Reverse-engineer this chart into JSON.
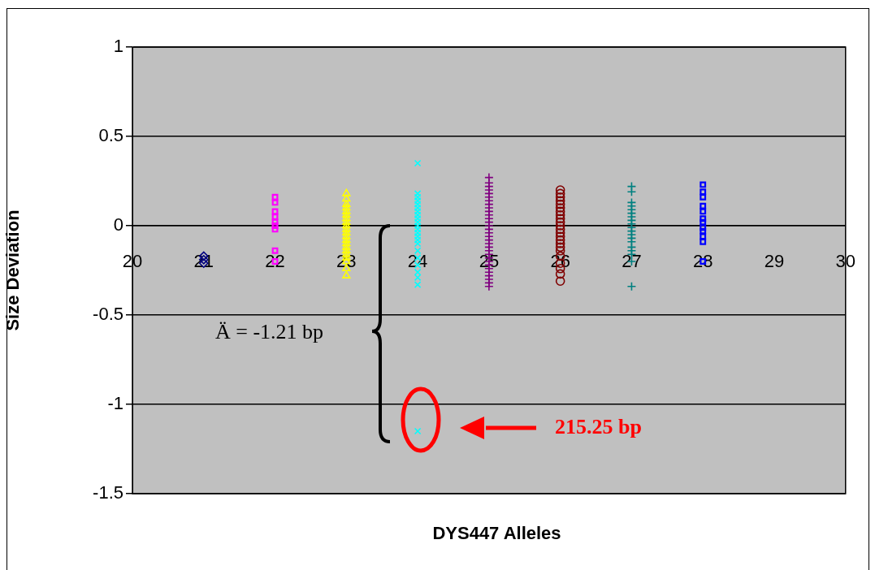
{
  "chart_data": {
    "type": "scatter",
    "xlabel": "DYS447 Alleles",
    "ylabel": "Size Deviation",
    "xlim": [
      20,
      30
    ],
    "xticks": [
      20,
      21,
      22,
      23,
      24,
      25,
      26,
      27,
      28,
      29,
      30
    ],
    "ylim": [
      -1.5,
      1
    ],
    "yticks": [
      -1.5,
      -1,
      -0.5,
      0,
      0.5,
      1
    ],
    "grid": "y",
    "legend": false,
    "series": [
      {
        "x": [
          21,
          21,
          21
        ],
        "values": [
          -0.17,
          -0.19,
          -0.21
        ],
        "color": "#000080",
        "marker": "diamond"
      },
      {
        "x": [
          22,
          22,
          22,
          22,
          22,
          22,
          22,
          22,
          22
        ],
        "values": [
          0.16,
          0.13,
          0.08,
          0.05,
          0.02,
          0.0,
          -0.02,
          -0.14,
          -0.2
        ],
        "color": "#ff00ff",
        "marker": "square"
      },
      {
        "x": [
          23,
          23,
          23,
          23,
          23,
          23,
          23,
          23,
          23,
          23,
          23,
          23,
          23,
          23,
          23,
          23,
          23,
          23,
          23,
          23,
          23
        ],
        "values": [
          0.18,
          0.15,
          0.12,
          0.1,
          0.08,
          0.06,
          0.04,
          0.02,
          0.0,
          -0.02,
          -0.04,
          -0.06,
          -0.08,
          -0.1,
          -0.12,
          -0.14,
          -0.16,
          -0.18,
          -0.2,
          -0.24,
          -0.28
        ],
        "color": "#ffff00",
        "marker": "triangle"
      },
      {
        "x": [
          24,
          24,
          24,
          24,
          24,
          24,
          24,
          24,
          24,
          24,
          24,
          24,
          24,
          24,
          24,
          24,
          24,
          24,
          24,
          24,
          24,
          24,
          24
        ],
        "values": [
          0.35,
          0.18,
          0.16,
          0.14,
          0.12,
          0.1,
          0.08,
          0.06,
          0.04,
          0.02,
          0.0,
          -0.02,
          -0.04,
          -0.06,
          -0.08,
          -0.1,
          -0.14,
          -0.18,
          -0.22,
          -0.26,
          -0.29,
          -0.33,
          -1.15
        ],
        "color": "#00ffff",
        "marker": "x"
      },
      {
        "x": [
          25,
          25,
          25,
          25,
          25,
          25,
          25,
          25,
          25,
          25,
          25,
          25,
          25,
          25,
          25,
          25,
          25,
          25,
          25,
          25,
          25,
          25,
          25,
          25,
          25,
          25,
          25,
          25,
          25,
          25,
          25
        ],
        "values": [
          0.27,
          0.24,
          0.22,
          0.2,
          0.18,
          0.16,
          0.14,
          0.12,
          0.1,
          0.08,
          0.06,
          0.04,
          0.02,
          0.0,
          -0.02,
          -0.04,
          -0.06,
          -0.08,
          -0.1,
          -0.12,
          -0.14,
          -0.16,
          -0.18,
          -0.2,
          -0.22,
          -0.24,
          -0.26,
          -0.28,
          -0.3,
          -0.32,
          -0.34
        ],
        "color": "#800080",
        "marker": "cross"
      },
      {
        "x": [
          26,
          26,
          26,
          26,
          26,
          26,
          26,
          26,
          26,
          26,
          26,
          26,
          26,
          26,
          26,
          26,
          26,
          26,
          26,
          26,
          26,
          26,
          26
        ],
        "values": [
          0.2,
          0.18,
          0.16,
          0.14,
          0.12,
          0.1,
          0.08,
          0.06,
          0.04,
          0.02,
          0.0,
          -0.02,
          -0.04,
          -0.06,
          -0.08,
          -0.1,
          -0.12,
          -0.14,
          -0.17,
          -0.21,
          -0.24,
          -0.27,
          -0.31
        ],
        "color": "#800000",
        "marker": "circle"
      },
      {
        "x": [
          27,
          27,
          27,
          27,
          27,
          27,
          27,
          27,
          27,
          27,
          27,
          27,
          27,
          27,
          27,
          27,
          27,
          27,
          27
        ],
        "values": [
          0.22,
          0.19,
          0.13,
          0.11,
          0.09,
          0.07,
          0.05,
          0.03,
          0.01,
          -0.01,
          -0.03,
          -0.05,
          -0.07,
          -0.09,
          -0.12,
          -0.14,
          -0.16,
          -0.2,
          -0.34
        ],
        "color": "#008080",
        "marker": "cross"
      },
      {
        "x": [
          28,
          28,
          28,
          28,
          28,
          28,
          28,
          28,
          28,
          28,
          28,
          28
        ],
        "values": [
          0.23,
          0.19,
          0.16,
          0.11,
          0.08,
          0.04,
          0.02,
          -0.01,
          -0.03,
          -0.06,
          -0.09,
          -0.2
        ],
        "color": "#0000ff",
        "marker": "square"
      }
    ],
    "annotations": [
      "Ä = -1.21 bp",
      "215.25 bp"
    ]
  }
}
